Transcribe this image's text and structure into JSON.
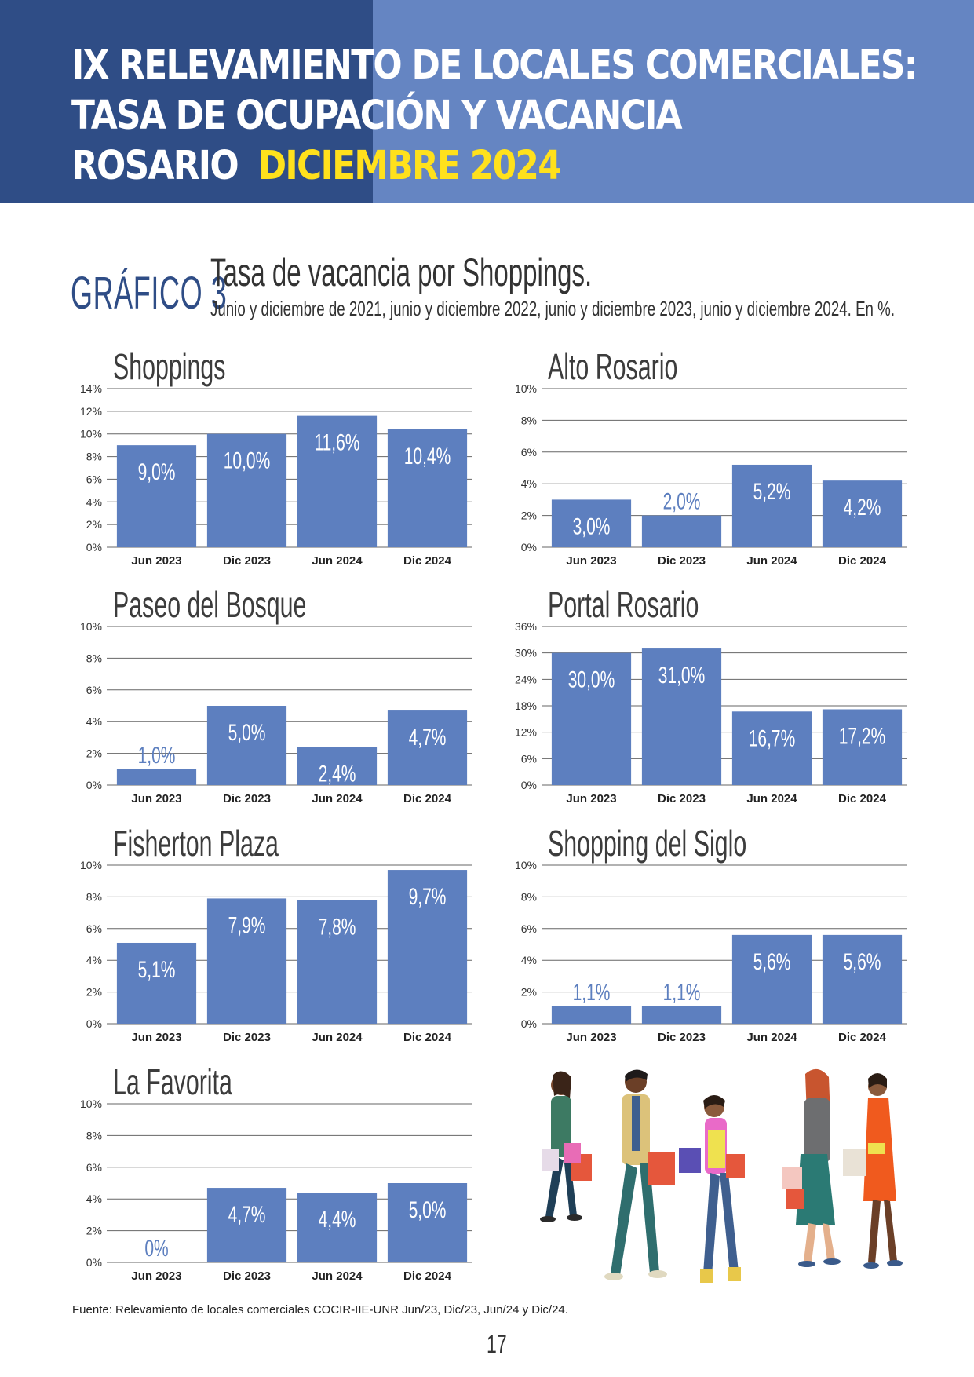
{
  "header": {
    "title_line1": "IX RELEVAMIENTO DE LOCALES COMERCIALES:",
    "title_line2": "TASA DE OCUPACIÓN Y VACANCIA",
    "city": "ROSARIO",
    "date": "DICIEMBRE 2024",
    "colors": {
      "dark": "#2f4d86",
      "light": "#6585c2",
      "date": "#ffe11c"
    }
  },
  "figure": {
    "tag": "GRÁFICO 3",
    "title": "Tasa de vacancia por Shoppings.",
    "subtitle": "Junio y diciembre de 2021, junio y diciembre 2022, junio y diciembre 2023, junio y diciembre 2024. En %."
  },
  "chart_data": [
    {
      "type": "bar",
      "title": "Shoppings",
      "categories": [
        "Jun 2023",
        "Dic 2023",
        "Jun 2024",
        "Dic 2024"
      ],
      "values": [
        9.0,
        10.0,
        11.6,
        10.4
      ],
      "value_labels": [
        "9,0%",
        "10,0%",
        "11,6%",
        "10,4%"
      ],
      "yticks": [
        "0%",
        "2%",
        "4%",
        "6%",
        "8%",
        "10%",
        "12%",
        "14%"
      ],
      "ylim": [
        0,
        14
      ],
      "grid": true,
      "bar_color": "#5d7fbf"
    },
    {
      "type": "bar",
      "title": "Alto Rosario",
      "categories": [
        "Jun 2023",
        "Dic 2023",
        "Jun 2024",
        "Dic 2024"
      ],
      "values": [
        3.0,
        2.0,
        5.2,
        4.2
      ],
      "value_labels": [
        "3,0%",
        "2,0%",
        "5,2%",
        "4,2%"
      ],
      "yticks": [
        "0%",
        "2%",
        "4%",
        "6%",
        "8%",
        "10%"
      ],
      "ylim": [
        0,
        10
      ],
      "grid": true,
      "bar_color": "#5d7fbf"
    },
    {
      "type": "bar",
      "title": "Paseo del Bosque",
      "categories": [
        "Jun 2023",
        "Dic 2023",
        "Jun 2024",
        "Dic 2024"
      ],
      "values": [
        1.0,
        5.0,
        2.4,
        4.7
      ],
      "value_labels": [
        "1,0%",
        "5,0%",
        "2,4%",
        "4,7%"
      ],
      "yticks": [
        "0%",
        "2%",
        "4%",
        "6%",
        "8%",
        "10%"
      ],
      "ylim": [
        0,
        10
      ],
      "grid": true,
      "bar_color": "#5d7fbf"
    },
    {
      "type": "bar",
      "title": "Portal Rosario",
      "categories": [
        "Jun 2023",
        "Dic 2023",
        "Jun 2024",
        "Dic 2024"
      ],
      "values": [
        30.0,
        31.0,
        16.7,
        17.2
      ],
      "value_labels": [
        "30,0%",
        "31,0%",
        "16,7%",
        "17,2%"
      ],
      "yticks": [
        "0%",
        "6%",
        "12%",
        "18%",
        "24%",
        "30%",
        "36%"
      ],
      "ylim": [
        0,
        36
      ],
      "grid": true,
      "bar_color": "#5d7fbf"
    },
    {
      "type": "bar",
      "title": "Fisherton Plaza",
      "categories": [
        "Jun 2023",
        "Dic 2023",
        "Jun 2024",
        "Dic 2024"
      ],
      "values": [
        5.1,
        7.9,
        7.8,
        9.7
      ],
      "value_labels": [
        "5,1%",
        "7,9%",
        "7,8%",
        "9,7%"
      ],
      "yticks": [
        "0%",
        "2%",
        "4%",
        "6%",
        "8%",
        "10%"
      ],
      "ylim": [
        0,
        10
      ],
      "grid": true,
      "bar_color": "#5d7fbf"
    },
    {
      "type": "bar",
      "title": "Shopping del Siglo",
      "categories": [
        "Jun 2023",
        "Dic 2023",
        "Jun 2024",
        "Dic 2024"
      ],
      "values": [
        1.1,
        1.1,
        5.6,
        5.6
      ],
      "value_labels": [
        "1,1%",
        "1,1%",
        "5,6%",
        "5,6%"
      ],
      "yticks": [
        "0%",
        "2%",
        "4%",
        "6%",
        "8%",
        "10%"
      ],
      "ylim": [
        0,
        10
      ],
      "grid": true,
      "bar_color": "#5d7fbf"
    },
    {
      "type": "bar",
      "title": "La Favorita",
      "categories": [
        "Jun 2023",
        "Dic 2023",
        "Jun 2024",
        "Dic 2024"
      ],
      "values": [
        0,
        4.7,
        4.4,
        5.0
      ],
      "value_labels": [
        "0%",
        "4,7%",
        "4,4%",
        "5,0%"
      ],
      "yticks": [
        "0%",
        "2%",
        "4%",
        "6%",
        "8%",
        "10%"
      ],
      "ylim": [
        0,
        10
      ],
      "grid": true,
      "bar_color": "#5d7fbf"
    }
  ],
  "footer": {
    "source": "Fuente: Relevamiento de locales comerciales COCIR-IIE-UNR Jun/23, Dic/23, Jun/24 y Dic/24.",
    "page_number": "17"
  }
}
